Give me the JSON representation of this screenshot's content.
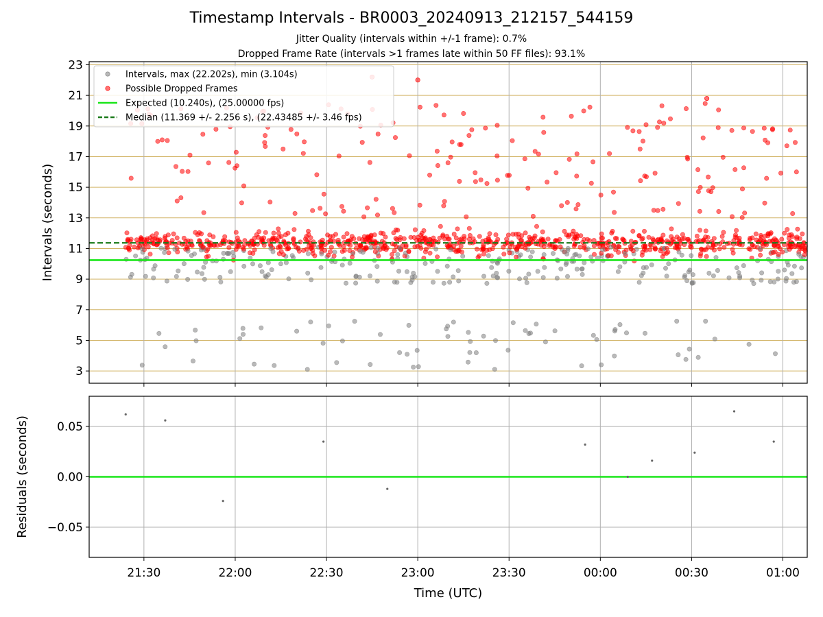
{
  "chart_data": [
    {
      "type": "scatter",
      "title": "Timestamp Intervals - BR0003_20240913_212157_544159",
      "subtitle": [
        "Jitter Quality (intervals within +/-1 frame): 0.7%",
        "Dropped Frame Rate (intervals >1 frames late within 50 FF files): 93.1%"
      ],
      "xlabel": "",
      "ylabel": "Intervals (seconds)",
      "x_unit": "time (UTC)",
      "xlim": [
        "21:12",
        "01:08"
      ],
      "ylim": [
        2.2,
        23.2
      ],
      "yticks": [
        3,
        5,
        7,
        9,
        11,
        13,
        15,
        17,
        19,
        21,
        23
      ],
      "xticks": [
        "21:30",
        "22:00",
        "22:30",
        "23:00",
        "23:30",
        "00:00",
        "00:30",
        "01:00"
      ],
      "grid": true,
      "legend_position": "top-left",
      "legend": [
        "Intervals, max (22.202s), min (3.104s)",
        "Possible Dropped Frames",
        "Expected (10.240s), (25.00000 fps)",
        "Median (11.369 +/- 2.256 s), (22.43485 +/- 3.46 fps)"
      ],
      "series": [
        {
          "name": "Expected (10.240s), (25.00000 fps)",
          "kind": "hline",
          "value": 10.24,
          "color": "#19e619"
        },
        {
          "name": "Median (11.369 +/- 2.256 s), (22.43485 +/- 3.46 fps)",
          "kind": "hline",
          "value": 11.369,
          "color": "#1a7a1a"
        }
      ],
      "max_interval": 22.202,
      "min_interval": 3.104,
      "point_count_gray_approx": 320,
      "point_count_red_approx": 1000
    },
    {
      "type": "scatter",
      "xlabel": "Time (UTC)",
      "ylabel": "Residuals (seconds)",
      "xlim": [
        "21:12",
        "01:08"
      ],
      "ylim": [
        -0.08,
        0.08
      ],
      "yticks": [
        "−0.05",
        "0.00",
        "0.05"
      ],
      "xticks": [
        "21:30",
        "22:00",
        "22:30",
        "23:00",
        "23:30",
        "00:00",
        "00:30",
        "01:00"
      ],
      "grid": true,
      "series": [
        {
          "kind": "hline",
          "value": 0.0,
          "color": "#19e619"
        },
        {
          "kind": "points",
          "x": [
            "21:24",
            "21:37",
            "21:56",
            "22:29",
            "22:50",
            "23:55",
            "00:09",
            "00:17",
            "00:31",
            "00:44",
            "00:57"
          ],
          "y": [
            0.062,
            0.056,
            -0.024,
            0.035,
            -0.012,
            0.032,
            0.0,
            0.016,
            0.024,
            0.065,
            0.035
          ]
        }
      ]
    }
  ],
  "colors": {
    "gray": "#808080",
    "red": "#ff0000",
    "expected": "#19e619",
    "median": "#1a7a1a",
    "grid": "#b0b0b0",
    "hgrid_top": "#d2b466"
  }
}
